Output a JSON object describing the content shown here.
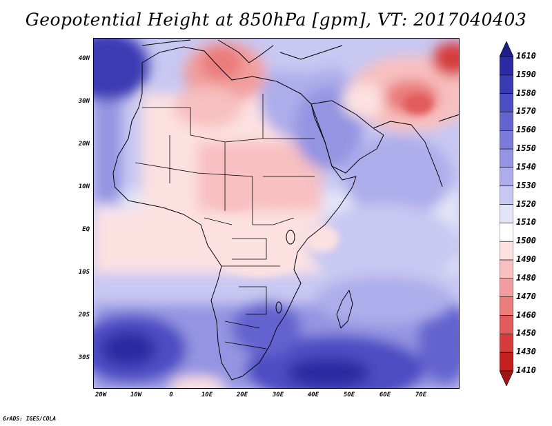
{
  "title": "Geopotential Height at 850hPa [gpm], VT: 2017040403",
  "footer": "GrADS: IGES/COLA",
  "lat_labels": [
    "40N",
    "30N",
    "20N",
    "10N",
    "EQ",
    "10S",
    "20S",
    "30S"
  ],
  "lon_labels": [
    "20W",
    "10W",
    "0",
    "10E",
    "20E",
    "30E",
    "40E",
    "50E",
    "60E",
    "70E"
  ],
  "colorbar": {
    "labels": [
      "1610",
      "1590",
      "1580",
      "1570",
      "1560",
      "1550",
      "1540",
      "1530",
      "1520",
      "1510",
      "1500",
      "1490",
      "1480",
      "1470",
      "1460",
      "1450",
      "1430",
      "1410"
    ],
    "colors": [
      "#1f1f8c",
      "#2b2ba3",
      "#3a3ab4",
      "#4e4ec4",
      "#6464cf",
      "#7b7bd9",
      "#9494e2",
      "#adadeb",
      "#c8c8f2",
      "#e4e4f8",
      "#ffffff",
      "#fde1e1",
      "#f8c0c0",
      "#f29e9e",
      "#ea7c7c",
      "#e15b5b",
      "#d63c3c",
      "#c42020",
      "#a01515"
    ]
  },
  "colors": {
    "high": "#2b2ba3",
    "mid_high": "#9494e2",
    "neutral": "#ffffff",
    "low": "#f29e9e",
    "very_low": "#d63c3c",
    "coastline": "#000000"
  }
}
